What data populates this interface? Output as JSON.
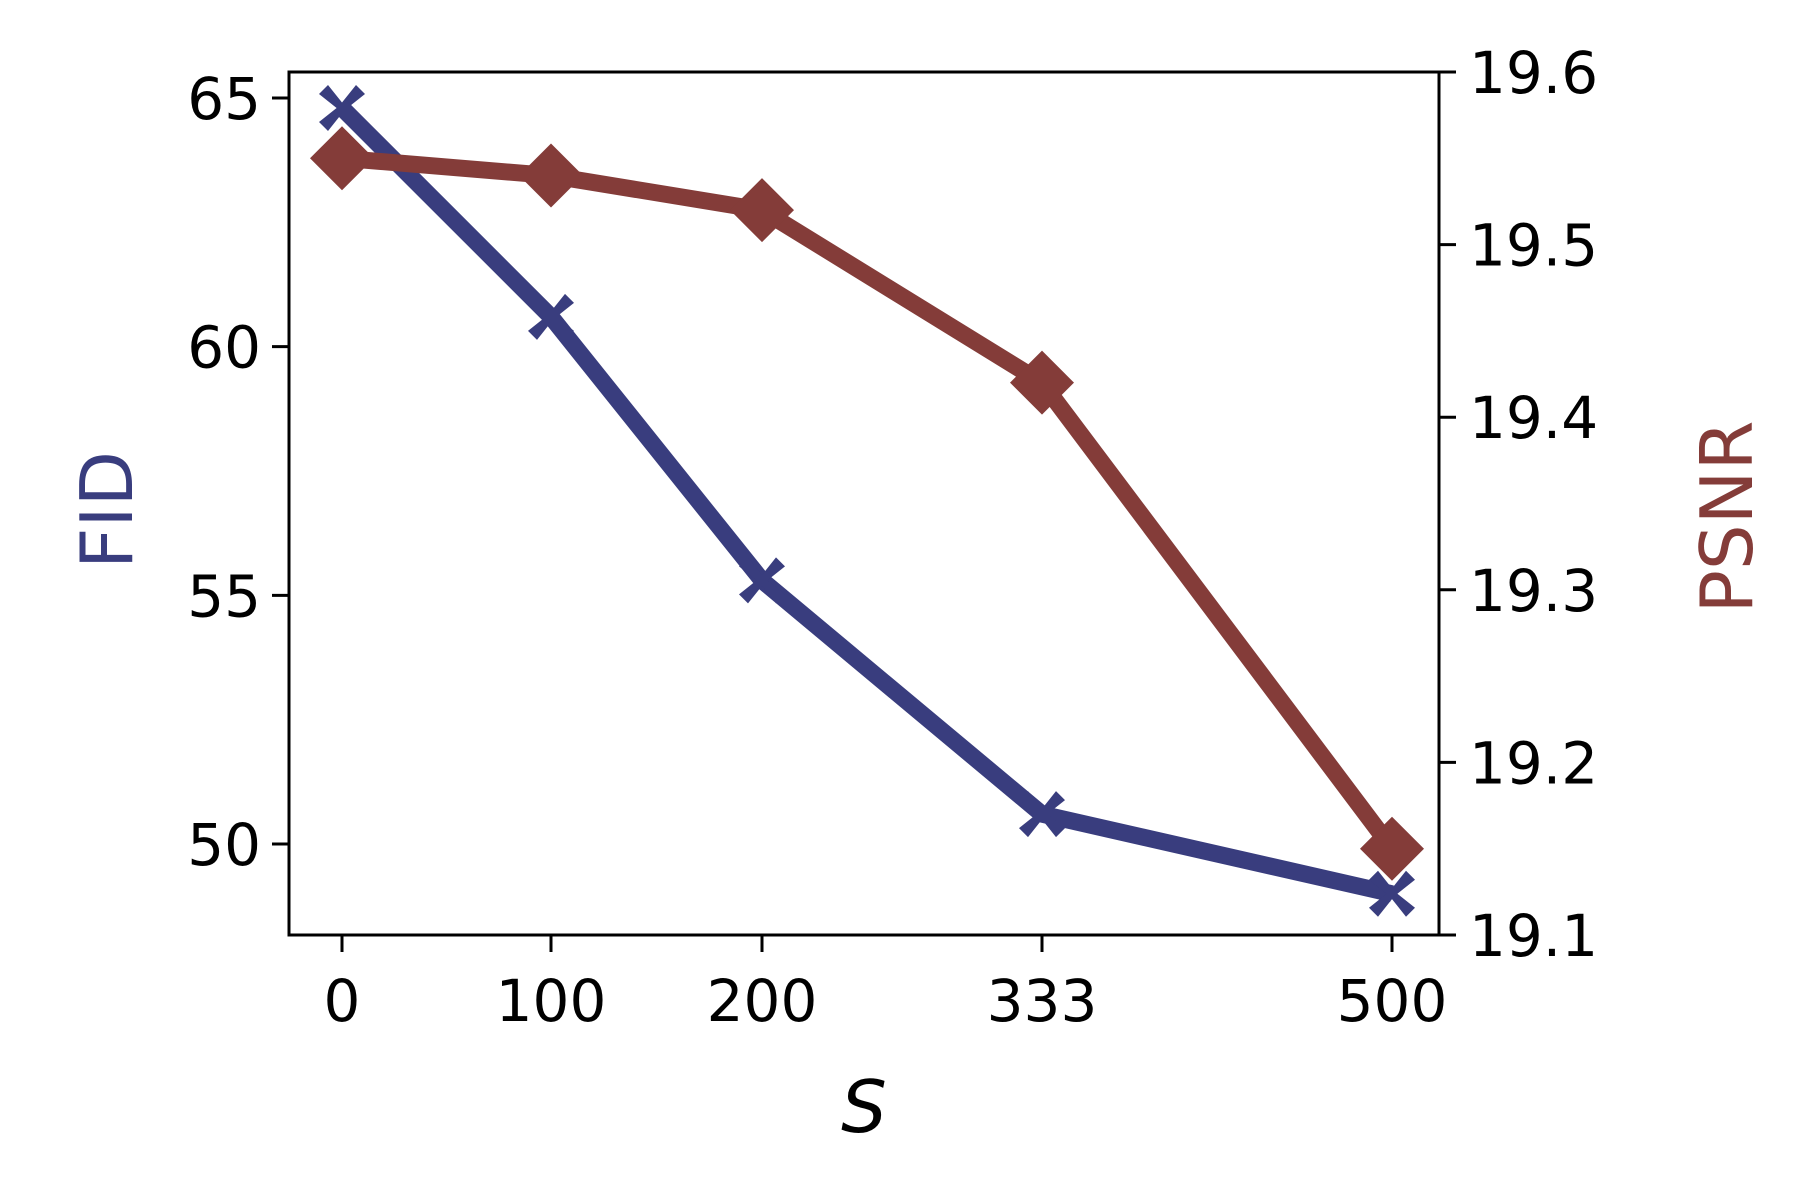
{
  "chart_data": {
    "type": "line",
    "title": "",
    "xlabel": "S",
    "ylabel": "FID",
    "ylabel_right": "PSNR",
    "categories": [
      "0",
      "100",
      "200",
      "333",
      "500"
    ],
    "x": [
      0,
      100,
      200,
      333,
      500
    ],
    "series": [
      {
        "name": "FID",
        "axis": "left",
        "marker": "X",
        "color": "#393d7e",
        "values": [
          64.8,
          60.6,
          55.3,
          50.6,
          49.0
        ]
      },
      {
        "name": "PSNR",
        "axis": "right",
        "marker": "diamond",
        "color": "#843c39",
        "values": [
          19.55,
          19.54,
          19.52,
          19.42,
          19.15
        ]
      }
    ],
    "ylim": [
      48.2,
      65.6
    ],
    "ylim_right": [
      19.1,
      19.6
    ],
    "yticks": [
      50,
      55,
      60,
      65
    ],
    "yticks_right": [
      19.1,
      19.2,
      19.3,
      19.4,
      19.5,
      19.6
    ],
    "grid": false,
    "legend": null
  },
  "axes": {
    "x_tick_labels": [
      "0",
      "100",
      "200",
      "333",
      "500"
    ],
    "y_left_tick_labels": [
      "65",
      "60",
      "55",
      "50"
    ],
    "y_right_tick_labels": [
      "19.6",
      "19.5",
      "19.4",
      "19.3",
      "19.2",
      "19.1"
    ],
    "x_title": "S",
    "y_left_title": "FID",
    "y_right_title": "PSNR"
  },
  "colors": {
    "fid": "#393d7e",
    "psnr": "#843c39",
    "axis": "#000000"
  }
}
